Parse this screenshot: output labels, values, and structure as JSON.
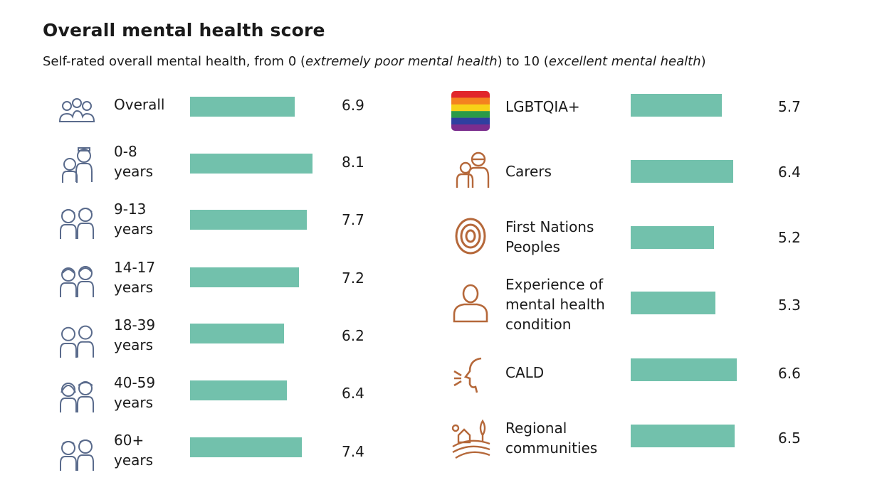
{
  "chart_data": {
    "type": "bar",
    "orientation": "horizontal",
    "title": "Overall mental health score",
    "subtitle": {
      "prefix": "Self-rated overall mental health, from 0 (",
      "low_label": "extremely poor mental health",
      "middle": ") to 10 (",
      "high_label": "excellent mental health",
      "suffix": ")"
    },
    "scale": [
      0,
      10
    ],
    "bar_color": "#72c1ac",
    "icon_color_left": "#5a6b8c",
    "icon_color_right": "#b5683a",
    "panels": [
      {
        "name": "age-groups",
        "items": [
          {
            "label": "Overall",
            "value": 6.9,
            "value_text": "6.9",
            "icon": "group-people-icon"
          },
          {
            "label": "0-8 years",
            "value": 8.1,
            "value_text": "8.1",
            "icon": "young-children-icon"
          },
          {
            "label": "9-13 years",
            "value": 7.7,
            "value_text": "7.7",
            "icon": "preteens-icon"
          },
          {
            "label": "14-17 years",
            "value": 7.2,
            "value_text": "7.2",
            "icon": "teenagers-icon"
          },
          {
            "label": "18-39 years",
            "value": 6.2,
            "value_text": "6.2",
            "icon": "young-adults-icon"
          },
          {
            "label": "40-59 years",
            "value": 6.4,
            "value_text": "6.4",
            "icon": "middle-aged-adults-icon"
          },
          {
            "label": "60+ years",
            "value": 7.4,
            "value_text": "7.4",
            "icon": "older-adults-icon"
          }
        ]
      },
      {
        "name": "population-groups",
        "items": [
          {
            "label": "LGBTQIA+",
            "value": 5.7,
            "value_text": "5.7",
            "icon": "rainbow-flag-icon"
          },
          {
            "label": "Carers",
            "value": 6.4,
            "value_text": "6.4",
            "icon": "carer-icon"
          },
          {
            "label": "First Nations Peoples",
            "value": 5.2,
            "value_text": "5.2",
            "icon": "concentric-circles-icon"
          },
          {
            "label": "Experience of mental health condition",
            "value": 5.3,
            "value_text": "5.3",
            "icon": "person-outline-icon"
          },
          {
            "label": "CALD",
            "value": 6.6,
            "value_text": "6.6",
            "icon": "speaking-head-icon"
          },
          {
            "label": "Regional communities",
            "value": 6.5,
            "value_text": "6.5",
            "icon": "regional-landscape-icon"
          }
        ]
      }
    ],
    "flag_colors": [
      "#e1262b",
      "#f4821f",
      "#f7d117",
      "#2a9a48",
      "#2f3fa0",
      "#7b2d8e"
    ]
  }
}
